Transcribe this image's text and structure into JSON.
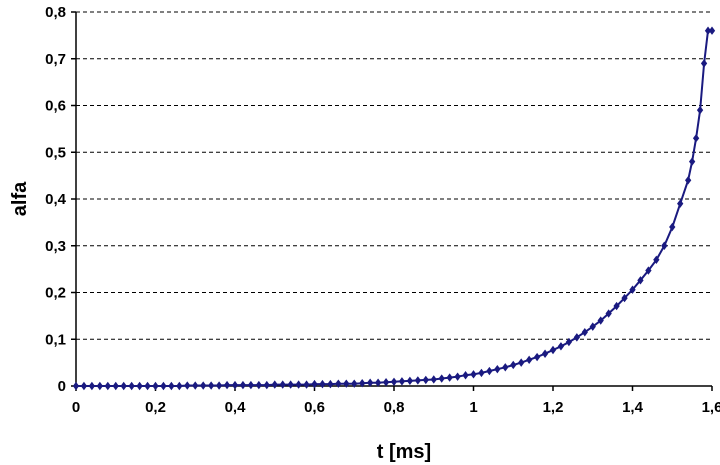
{
  "chart_data": {
    "type": "line",
    "xlabel": "t [ms]",
    "ylabel": "alfa",
    "xlim": [
      0,
      1.6
    ],
    "ylim": [
      0,
      0.8
    ],
    "x_ticks": [
      "0",
      "0,2",
      "0,4",
      "0,6",
      "0,8",
      "1",
      "1,2",
      "1,4",
      "1,6"
    ],
    "y_ticks": [
      "0",
      "0,1",
      "0,2",
      "0,3",
      "0,4",
      "0,5",
      "0,6",
      "0,7",
      "0,8"
    ],
    "grid": "horizontal-dashed",
    "marker": "diamond",
    "series": [
      {
        "color": "#1a1a80",
        "x": [
          0.0,
          0.02,
          0.04,
          0.06,
          0.08,
          0.1,
          0.12,
          0.14,
          0.16,
          0.18,
          0.2,
          0.22,
          0.24,
          0.26,
          0.28,
          0.3,
          0.32,
          0.34,
          0.36,
          0.38,
          0.4,
          0.42,
          0.44,
          0.46,
          0.48,
          0.5,
          0.52,
          0.54,
          0.56,
          0.58,
          0.6,
          0.62,
          0.64,
          0.66,
          0.68,
          0.7,
          0.72,
          0.74,
          0.76,
          0.78,
          0.8,
          0.82,
          0.84,
          0.86,
          0.88,
          0.9,
          0.92,
          0.94,
          0.96,
          0.98,
          1.0,
          1.02,
          1.04,
          1.06,
          1.08,
          1.1,
          1.12,
          1.14,
          1.16,
          1.18,
          1.2,
          1.22,
          1.24,
          1.26,
          1.28,
          1.3,
          1.32,
          1.34,
          1.36,
          1.38,
          1.4,
          1.42,
          1.44,
          1.46,
          1.48,
          1.5,
          1.52,
          1.54,
          1.55,
          1.56,
          1.57,
          1.58,
          1.59,
          1.6
        ],
        "y": [
          0.0,
          0.0,
          0.0,
          0.0,
          0.0,
          0.0,
          0.0,
          0.0,
          0.0,
          0.0,
          0.0,
          0.0,
          0.0,
          0.0,
          0.001,
          0.001,
          0.001,
          0.001,
          0.001,
          0.002,
          0.002,
          0.002,
          0.002,
          0.002,
          0.002,
          0.003,
          0.003,
          0.003,
          0.003,
          0.003,
          0.004,
          0.004,
          0.004,
          0.005,
          0.005,
          0.005,
          0.006,
          0.007,
          0.007,
          0.008,
          0.009,
          0.01,
          0.011,
          0.012,
          0.013,
          0.014,
          0.016,
          0.018,
          0.02,
          0.023,
          0.025,
          0.028,
          0.032,
          0.036,
          0.04,
          0.045,
          0.05,
          0.056,
          0.062,
          0.069,
          0.077,
          0.085,
          0.094,
          0.104,
          0.115,
          0.127,
          0.14,
          0.155,
          0.171,
          0.188,
          0.206,
          0.226,
          0.247,
          0.27,
          0.3,
          0.34,
          0.39,
          0.44,
          0.48,
          0.53,
          0.59,
          0.69,
          0.76,
          0.76
        ]
      }
    ]
  }
}
